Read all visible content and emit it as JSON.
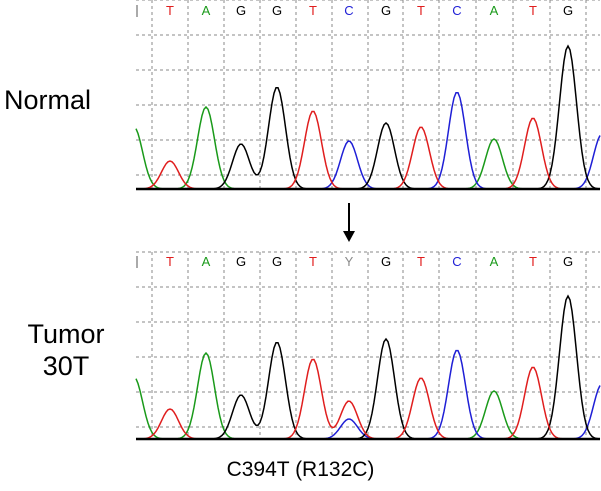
{
  "panels": [
    {
      "label_lines": [
        "Normal"
      ],
      "bases": [
        "T",
        "A",
        "G",
        "G",
        "T",
        "C",
        "G",
        "T",
        "C",
        "A",
        "T",
        "G"
      ]
    },
    {
      "label_lines": [
        "Tumor",
        "30T"
      ],
      "bases": [
        "T",
        "A",
        "G",
        "G",
        "T",
        "Y",
        "G",
        "T",
        "C",
        "A",
        "T",
        "G"
      ]
    }
  ],
  "mutation_caption": "C394T (R132C)",
  "colors": {
    "A": "#1a9a1a",
    "C": "#1f1fd6",
    "G": "#000000",
    "T": "#e01e1e",
    "Y": "#8a8a8a",
    "grid": "#888888"
  }
}
